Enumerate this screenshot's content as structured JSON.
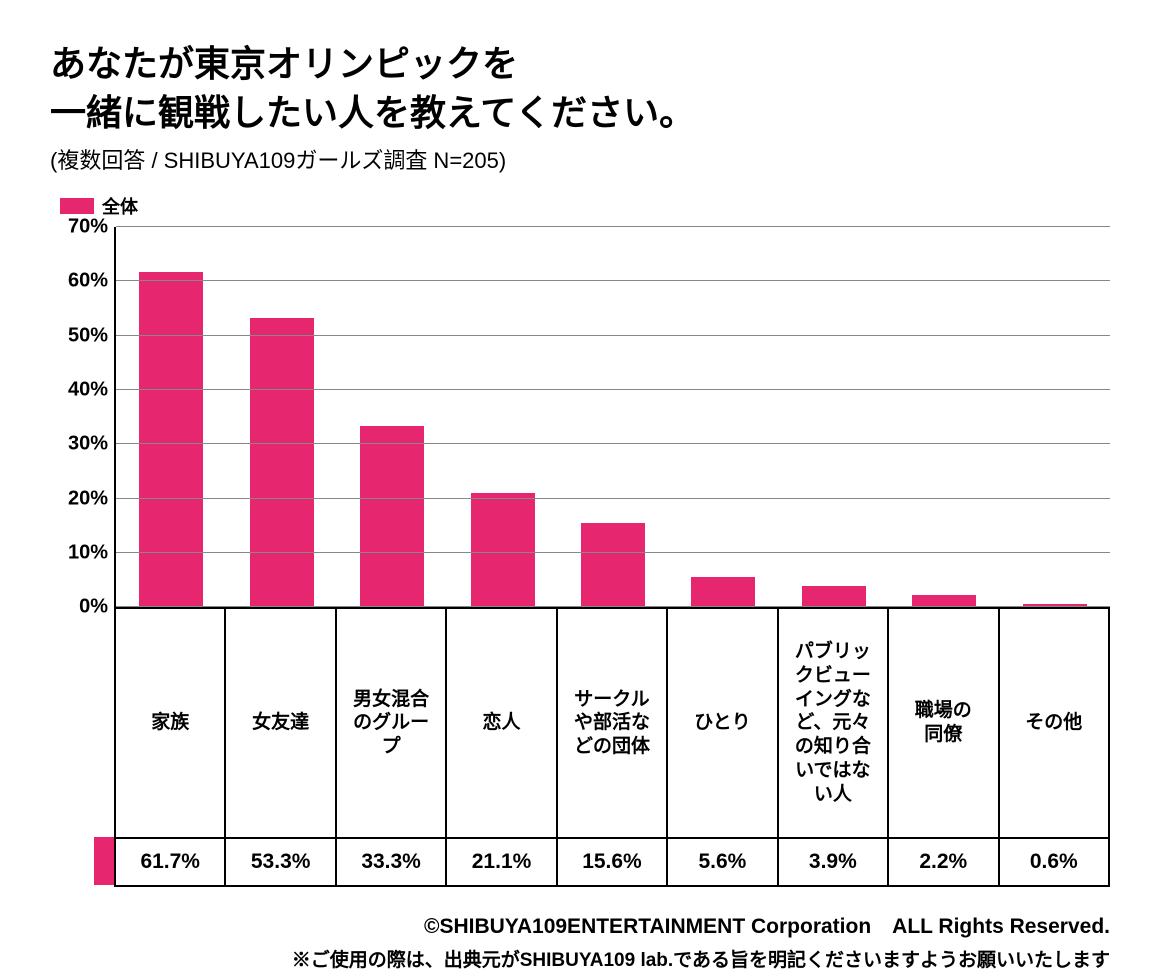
{
  "title_line1": "あなたが東京オリンピックを",
  "title_line2": "一緒に観戦したい人を教えてください。",
  "title_fontsize": 36,
  "subtitle": "(複数回答 / SHIBUYA109ガールズ調査 N=205)",
  "subtitle_fontsize": 22,
  "legend_label": "全体",
  "chart": {
    "type": "bar",
    "bar_color": "#e6266e",
    "grid_color": "#888888",
    "axis_color": "#000000",
    "background_color": "#ffffff",
    "ylim_max": 70,
    "ytick_step": 10,
    "yticks": [
      "0%",
      "10%",
      "20%",
      "30%",
      "40%",
      "50%",
      "60%",
      "70%"
    ],
    "categories": [
      "家族",
      "女友達",
      "男女混合\nのグルー\nプ",
      "恋人",
      "サークル\nや部活な\nどの団体",
      "ひとり",
      "パブリッ\nクビュー\nイングな\nど、元々\nの知り合\nいではな\nい人",
      "職場の\n同僚",
      "その他"
    ],
    "values": [
      61.7,
      53.3,
      33.3,
      21.1,
      15.6,
      5.6,
      3.9,
      2.2,
      0.6
    ],
    "value_labels": [
      "61.7%",
      "53.3%",
      "33.3%",
      "21.1%",
      "15.6%",
      "5.6%",
      "3.9%",
      "2.2%",
      "0.6%"
    ]
  },
  "footer_line1": "©SHIBUYA109ENTERTAINMENT Corporation　ALL Rights Reserved.",
  "footer_line2": "※ご使用の際は、出典元がSHIBUYA109 lab.である旨を明記くださいますようお願いいたします"
}
